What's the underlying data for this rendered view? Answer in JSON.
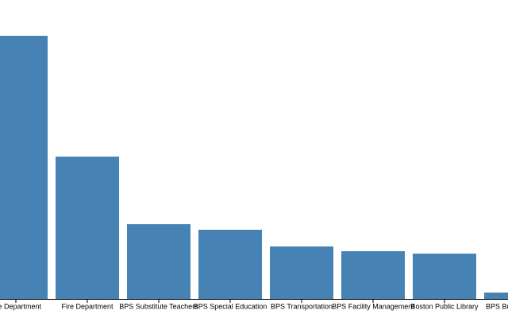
{
  "chart_data": {
    "type": "bar",
    "categories": [
      "ce Department",
      "Fire Department",
      "BPS Substitute Teachers",
      "BPS Special Education",
      "BPS Transportation",
      "BPS Facility Management",
      "Boston Public Library",
      "BPS Bu"
    ],
    "values": [
      331,
      179,
      94,
      87,
      66,
      60,
      57,
      8
    ],
    "color": "#4682b4"
  }
}
